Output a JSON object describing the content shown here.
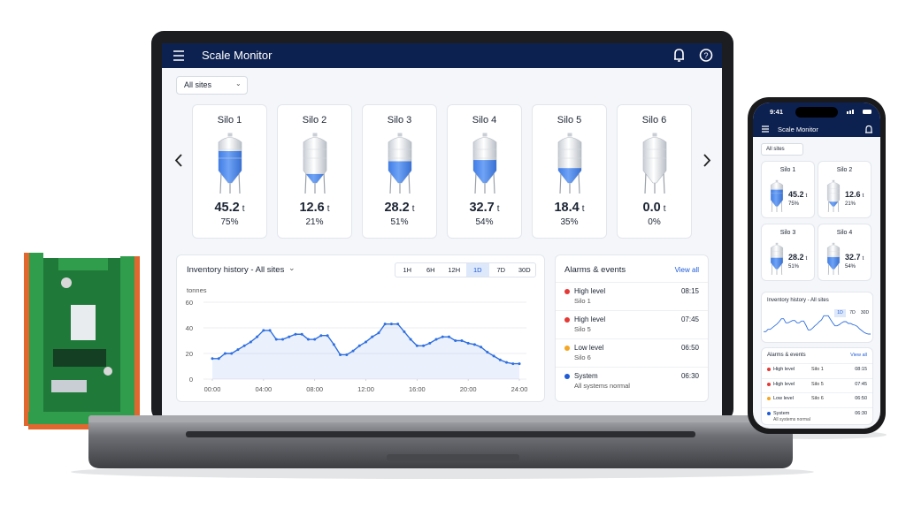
{
  "app": {
    "title": "Scale Monitor",
    "site_filter": "All sites"
  },
  "silos": [
    {
      "name": "Silo 1",
      "weight": "45.2",
      "unit": "t",
      "level": 75,
      "level_label": "75%"
    },
    {
      "name": "Silo 2",
      "weight": "12.6",
      "unit": "t",
      "level": 21,
      "level_label": "21%"
    },
    {
      "name": "Silo 3",
      "weight": "28.2",
      "unit": "t",
      "level": 51,
      "level_label": "51%"
    },
    {
      "name": "Silo 4",
      "weight": "32.7",
      "unit": "t",
      "level": 54,
      "level_label": "54%"
    },
    {
      "name": "Silo 5",
      "weight": "18.4",
      "unit": "t",
      "level": 35,
      "level_label": "35%"
    },
    {
      "name": "Silo 6",
      "weight": "0.0",
      "unit": "t",
      "level": 0,
      "level_label": "0%"
    }
  ],
  "chart_data": {
    "type": "line",
    "title": "Inventory history - All sites",
    "ylabel": "tonnes",
    "ranges": [
      "1H",
      "6H",
      "12H",
      "1D",
      "7D",
      "30D"
    ],
    "active_range": "1D",
    "x": [
      0,
      0.5,
      1,
      1.5,
      2,
      2.5,
      3,
      3.5,
      4,
      4.5,
      5,
      5.5,
      6,
      6.5,
      7,
      7.5,
      8,
      8.5,
      9,
      9.5,
      10,
      10.5,
      11,
      11.5,
      12,
      12.5,
      13,
      13.5,
      14,
      14.5,
      15,
      15.5,
      16,
      16.5,
      17,
      17.5,
      18,
      18.5,
      19,
      19.5,
      20,
      20.5,
      21,
      21.5,
      22,
      22.5,
      23,
      23.5,
      24
    ],
    "values": [
      16,
      16,
      20,
      20,
      23,
      26,
      29,
      33,
      38,
      38,
      31,
      31,
      33,
      35,
      35,
      31,
      31,
      34,
      34,
      27,
      19,
      19,
      22,
      26,
      29,
      33,
      36,
      43,
      43,
      43,
      37,
      31,
      26,
      26,
      28,
      31,
      33,
      33,
      30,
      30,
      28,
      27,
      25,
      21,
      18,
      15,
      13,
      12,
      12
    ],
    "color": "#2f6fe0",
    "xlim": [
      0,
      24
    ],
    "xticks": [
      {
        "value": 0,
        "label": "00:00"
      },
      {
        "value": 4,
        "label": "04:00"
      },
      {
        "value": 8,
        "label": "08:00"
      },
      {
        "value": 12,
        "label": "12:00"
      },
      {
        "value": 16,
        "label": "16:00"
      },
      {
        "value": 20,
        "label": "20:00"
      },
      {
        "value": 24,
        "label": "24:00"
      }
    ],
    "ylim": [
      0,
      60
    ],
    "yticks": [
      0,
      20,
      40,
      60
    ],
    "grid": true
  },
  "alarms": {
    "title": "Alarms & events",
    "link": "View all",
    "events": [
      {
        "level": "High level",
        "source": "Silo 1",
        "time": "08:15",
        "color": "#e53935"
      },
      {
        "level": "High level",
        "source": "Silo 5",
        "time": "07:45",
        "color": "#e53935"
      },
      {
        "level": "Low level",
        "source": "Silo 6",
        "time": "06:50",
        "color": "#f5a623"
      },
      {
        "level": "System",
        "source": "All systems normal",
        "time": "06:30",
        "color": "#1e5bd8"
      }
    ]
  },
  "phone": {
    "clock": "9:41"
  }
}
